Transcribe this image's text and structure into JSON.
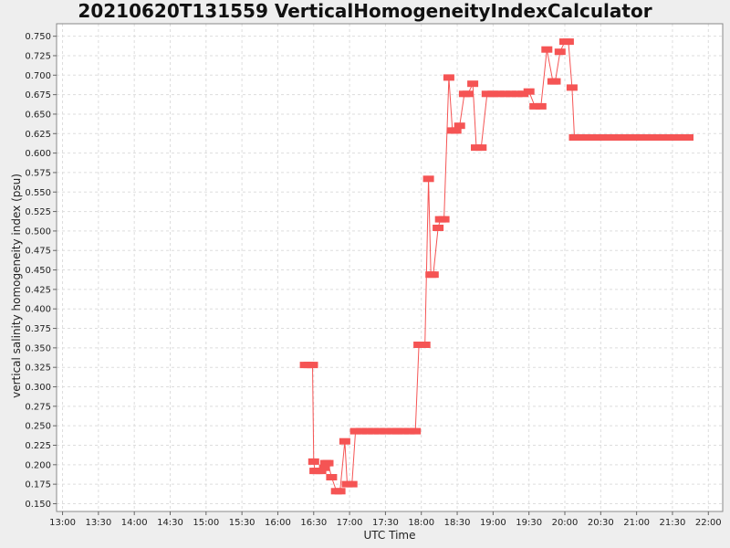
{
  "chart_data": {
    "type": "line",
    "title": "20210620T131559 VerticalHomogeneityIndexCalculator",
    "xlabel": "UTC Time",
    "ylabel": "vertical salinity homogeneity index (psu)",
    "xlim": [
      "12:55",
      "22:12"
    ],
    "ylim": [
      0.14,
      0.766
    ],
    "x_ticks": [
      "13:00",
      "13:30",
      "14:00",
      "14:30",
      "15:00",
      "15:30",
      "16:00",
      "16:30",
      "17:00",
      "17:30",
      "18:00",
      "18:30",
      "19:00",
      "19:30",
      "20:00",
      "20:30",
      "21:00",
      "21:30",
      "22:00"
    ],
    "y_ticks": [
      "0.150",
      "0.175",
      "0.200",
      "0.225",
      "0.250",
      "0.275",
      "0.300",
      "0.325",
      "0.350",
      "0.375",
      "0.400",
      "0.425",
      "0.450",
      "0.475",
      "0.500",
      "0.525",
      "0.550",
      "0.575",
      "0.600",
      "0.625",
      "0.650",
      "0.675",
      "0.700",
      "0.725",
      "0.750"
    ],
    "grid": true,
    "series_color": "#f55454",
    "series": [
      {
        "x": [
          "16:23",
          "16:26",
          "16:29",
          "16:30",
          "16:31",
          "16:33",
          "16:36",
          "16:39",
          "16:40",
          "16:42",
          "16:45",
          "16:49",
          "16:52",
          "16:56",
          "16:58",
          "17:02",
          "17:05",
          "17:10",
          "17:15",
          "17:20",
          "17:25",
          "17:30",
          "17:36",
          "17:40",
          "17:45",
          "17:50",
          "17:55",
          "17:58",
          "18:03",
          "18:06",
          "18:08",
          "18:10",
          "18:14",
          "18:16",
          "18:19",
          "18:23",
          "18:26",
          "18:29",
          "18:32",
          "18:36",
          "18:39",
          "18:43",
          "18:46",
          "18:50",
          "18:55",
          "19:00",
          "19:05",
          "19:10",
          "19:15",
          "19:20",
          "19:25",
          "19:30",
          "19:35",
          "19:40",
          "19:45",
          "19:50",
          "19:52",
          "19:56",
          "20:00",
          "20:03",
          "20:06",
          "20:08",
          "20:10",
          "20:15",
          "20:20",
          "20:25",
          "20:30",
          "20:35",
          "20:40",
          "20:45",
          "20:52",
          "20:58",
          "21:00",
          "21:05",
          "21:10",
          "21:15",
          "21:20",
          "21:25",
          "21:30",
          "21:33",
          "21:38",
          "21:43"
        ],
        "y": [
          0.328,
          0.328,
          0.328,
          0.204,
          0.192,
          0.192,
          0.192,
          0.196,
          0.202,
          0.202,
          0.184,
          0.166,
          0.166,
          0.23,
          0.175,
          0.175,
          0.243,
          0.243,
          0.243,
          0.243,
          0.243,
          0.243,
          0.243,
          0.243,
          0.243,
          0.243,
          0.243,
          0.354,
          0.354,
          0.567,
          0.444,
          0.444,
          0.504,
          0.515,
          0.515,
          0.697,
          0.629,
          0.629,
          0.635,
          0.676,
          0.676,
          0.689,
          0.607,
          0.607,
          0.676,
          0.676,
          0.676,
          0.676,
          0.676,
          0.676,
          0.676,
          0.679,
          0.66,
          0.66,
          0.733,
          0.692,
          0.692,
          0.73,
          0.743,
          0.743,
          0.684,
          0.62,
          0.62,
          0.62,
          0.62,
          0.62,
          0.62,
          0.62,
          0.62,
          0.62,
          0.62,
          0.62,
          0.62,
          0.62,
          0.62,
          0.62,
          0.62,
          0.62,
          0.62,
          0.62,
          0.62,
          0.62
        ]
      }
    ]
  }
}
